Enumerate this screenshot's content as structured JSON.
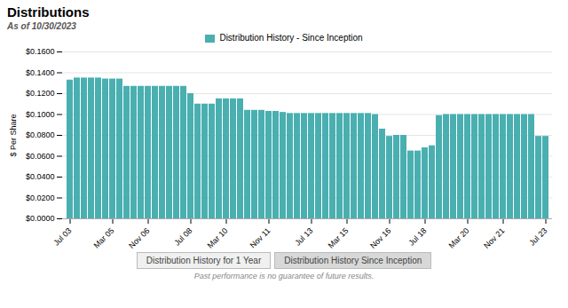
{
  "chart_data": {
    "type": "bar",
    "title": "Distributions",
    "subtitle": "As of 10/30/2023",
    "ylabel": "$ Per Share",
    "categories": [
      "Jul 03",
      null,
      null,
      null,
      null,
      null,
      "Mar 05",
      null,
      null,
      null,
      null,
      "Nov 06",
      null,
      null,
      null,
      null,
      null,
      "Jul 08",
      null,
      null,
      null,
      null,
      "Mar 10",
      null,
      null,
      null,
      null,
      null,
      "Nov 11",
      null,
      null,
      null,
      null,
      null,
      "Jul 13",
      null,
      null,
      null,
      null,
      "Mar 15",
      null,
      null,
      null,
      null,
      null,
      "Nov 16",
      null,
      null,
      null,
      null,
      "Jul 18",
      null,
      null,
      null,
      null,
      null,
      "Mar 20",
      null,
      null,
      null,
      null,
      "Nov 21",
      null,
      null,
      null,
      null,
      null,
      "Jul 23"
    ],
    "series": [
      {
        "name": "Distribution History - Since Inception",
        "color": "#4aafb0",
        "values": [
          0.133,
          0.135,
          0.135,
          0.135,
          0.135,
          0.134,
          0.134,
          0.134,
          0.127,
          0.127,
          0.127,
          0.127,
          0.127,
          0.127,
          0.127,
          0.127,
          0.127,
          0.12,
          0.11,
          0.11,
          0.11,
          0.115,
          0.115,
          0.115,
          0.115,
          0.104,
          0.104,
          0.104,
          0.103,
          0.103,
          0.102,
          0.101,
          0.101,
          0.101,
          0.101,
          0.101,
          0.101,
          0.101,
          0.101,
          0.101,
          0.101,
          0.101,
          0.101,
          0.1,
          0.086,
          0.079,
          0.08,
          0.08,
          0.065,
          0.065,
          0.068,
          0.07,
          0.099,
          0.1,
          0.1,
          0.1,
          0.1,
          0.1,
          0.1,
          0.1,
          0.1,
          0.1,
          0.1,
          0.1,
          0.1,
          0.1,
          0.079,
          0.079
        ]
      }
    ],
    "ylim": [
      0,
      0.16
    ],
    "yticks": [
      {
        "value": 0,
        "label": "$0.0000"
      },
      {
        "value": 0.02,
        "label": "$0.0200"
      },
      {
        "value": 0.04,
        "label": "$0.0400"
      },
      {
        "value": 0.06,
        "label": "$0.0600"
      },
      {
        "value": 0.08,
        "label": "$0.0800"
      },
      {
        "value": 0.1,
        "label": "$0.1000"
      },
      {
        "value": 0.12,
        "label": "$0.1200"
      },
      {
        "value": 0.14,
        "label": "$0.1400"
      },
      {
        "value": 0.16,
        "label": "$0.1600"
      }
    ],
    "grid": true,
    "legend": "upper center",
    "annotations": [
      "Distribution History for 1 Year",
      "Distribution History Since Inception"
    ],
    "footer": "Past performance is no guarantee of future results."
  }
}
